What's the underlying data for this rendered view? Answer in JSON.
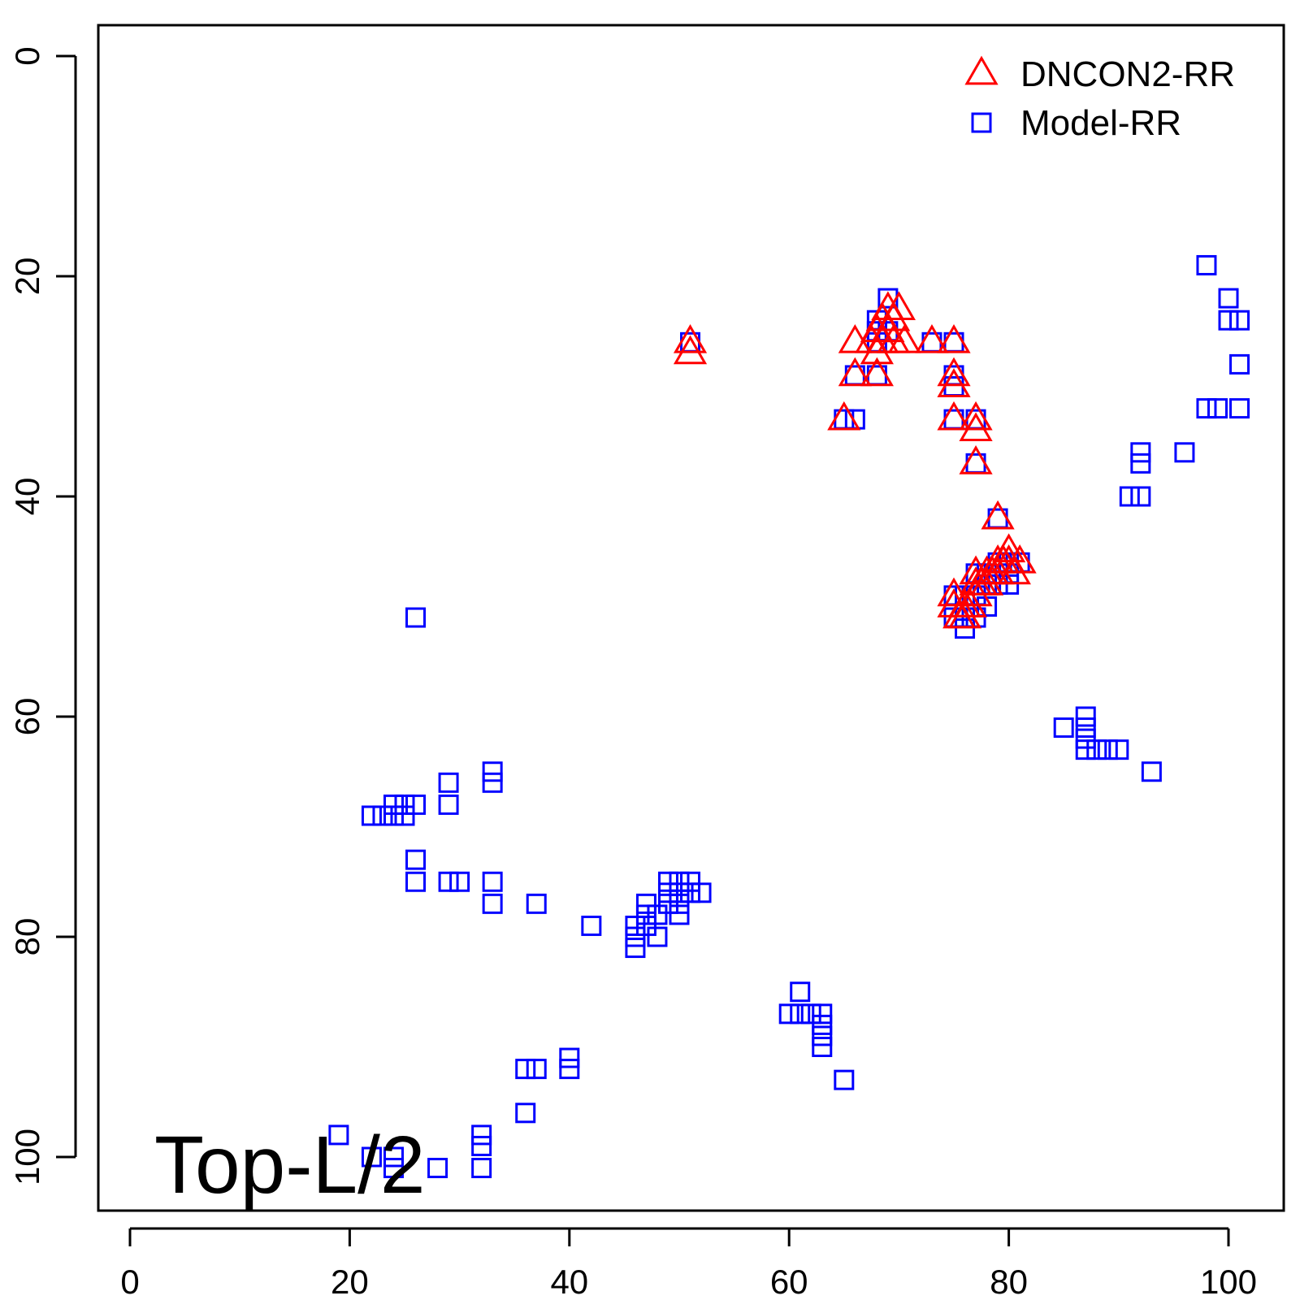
{
  "chart_data": {
    "type": "scatter",
    "title": "",
    "xlabel": "",
    "ylabel": "",
    "xlim": [
      -1.5,
      103
    ],
    "ylim": [
      105,
      -3
    ],
    "y_reversed": true,
    "x_ticks": [
      0,
      20,
      40,
      60,
      80,
      100
    ],
    "y_ticks": [
      0,
      20,
      40,
      60,
      80,
      100
    ],
    "grid": false,
    "legend_position": "top-right",
    "annotation": "Top-L/2",
    "series": [
      {
        "name": "DNCON2-RR",
        "marker": "triangle",
        "color": "#ff0000",
        "points": [
          [
            51,
            26
          ],
          [
            51,
            27
          ],
          [
            65,
            33
          ],
          [
            66,
            26
          ],
          [
            66,
            29
          ],
          [
            67.5,
            26
          ],
          [
            68,
            25
          ],
          [
            68,
            27
          ],
          [
            68,
            29
          ],
          [
            68.5,
            24
          ],
          [
            68.5,
            26
          ],
          [
            69,
            23
          ],
          [
            69,
            25
          ],
          [
            69.5,
            24
          ],
          [
            69.5,
            26
          ],
          [
            70,
            23
          ],
          [
            70.5,
            26
          ],
          [
            73,
            26
          ],
          [
            75,
            26
          ],
          [
            75,
            29
          ],
          [
            75,
            30
          ],
          [
            75,
            33
          ],
          [
            77,
            33
          ],
          [
            77,
            34
          ],
          [
            77,
            37
          ],
          [
            79,
            42
          ],
          [
            75,
            49
          ],
          [
            75,
            50
          ],
          [
            75.5,
            51
          ],
          [
            76,
            50
          ],
          [
            76,
            51
          ],
          [
            76.5,
            50
          ],
          [
            77,
            47
          ],
          [
            77,
            48
          ],
          [
            77,
            49
          ],
          [
            77.5,
            48
          ],
          [
            78,
            47
          ],
          [
            78,
            48
          ],
          [
            78.5,
            47
          ],
          [
            79,
            46
          ],
          [
            79,
            47
          ],
          [
            79.5,
            46
          ],
          [
            80,
            45
          ],
          [
            80,
            46
          ],
          [
            80.5,
            47
          ],
          [
            81,
            46
          ]
        ]
      },
      {
        "name": "Model-RR",
        "marker": "square",
        "color": "#0000ff",
        "points": [
          [
            98,
            19
          ],
          [
            100,
            22
          ],
          [
            100,
            24
          ],
          [
            101,
            24
          ],
          [
            101,
            28
          ],
          [
            98,
            32
          ],
          [
            99,
            32
          ],
          [
            101,
            32
          ],
          [
            92,
            36
          ],
          [
            92,
            37
          ],
          [
            96,
            36
          ],
          [
            91,
            40
          ],
          [
            92,
            40
          ],
          [
            85,
            61
          ],
          [
            87,
            60
          ],
          [
            87,
            61
          ],
          [
            87,
            62
          ],
          [
            87,
            63
          ],
          [
            88,
            63
          ],
          [
            89,
            63
          ],
          [
            90,
            63
          ],
          [
            93,
            65
          ],
          [
            69,
            22
          ],
          [
            68,
            24
          ],
          [
            68,
            25
          ],
          [
            69,
            25
          ],
          [
            68,
            26
          ],
          [
            51,
            26
          ],
          [
            66,
            29
          ],
          [
            68,
            29
          ],
          [
            65,
            33
          ],
          [
            66,
            33
          ],
          [
            73,
            26
          ],
          [
            75,
            26
          ],
          [
            75,
            29
          ],
          [
            75,
            30
          ],
          [
            75,
            33
          ],
          [
            77,
            33
          ],
          [
            77,
            37
          ],
          [
            79,
            42
          ],
          [
            79,
            46
          ],
          [
            80,
            46
          ],
          [
            81,
            46
          ],
          [
            77,
            47
          ],
          [
            80,
            47
          ],
          [
            78,
            47
          ],
          [
            75,
            49
          ],
          [
            76,
            49
          ],
          [
            77,
            49
          ],
          [
            78,
            48
          ],
          [
            79,
            48
          ],
          [
            80,
            48
          ],
          [
            75,
            51
          ],
          [
            76,
            51
          ],
          [
            77,
            51
          ],
          [
            78,
            50
          ],
          [
            76,
            52
          ],
          [
            26,
            51
          ],
          [
            22,
            69
          ],
          [
            23,
            69
          ],
          [
            24,
            69
          ],
          [
            25,
            69
          ],
          [
            24,
            68
          ],
          [
            25,
            68
          ],
          [
            26,
            68
          ],
          [
            29,
            66
          ],
          [
            29,
            68
          ],
          [
            33,
            65
          ],
          [
            33,
            66
          ],
          [
            26,
            73
          ],
          [
            26,
            75
          ],
          [
            29,
            75
          ],
          [
            30,
            75
          ],
          [
            33,
            75
          ],
          [
            33,
            77
          ],
          [
            37,
            77
          ],
          [
            42,
            79
          ],
          [
            46,
            79
          ],
          [
            46,
            80
          ],
          [
            46,
            81
          ],
          [
            47,
            77
          ],
          [
            47,
            78
          ],
          [
            47,
            79
          ],
          [
            48,
            80
          ],
          [
            48,
            78
          ],
          [
            49,
            75
          ],
          [
            49,
            76
          ],
          [
            49,
            77
          ],
          [
            50,
            75
          ],
          [
            50,
            76
          ],
          [
            50,
            77
          ],
          [
            50,
            78
          ],
          [
            51,
            75
          ],
          [
            51,
            76
          ],
          [
            52,
            76
          ],
          [
            61,
            85
          ],
          [
            60,
            87
          ],
          [
            61,
            87
          ],
          [
            62,
            87
          ],
          [
            63,
            87
          ],
          [
            63,
            88
          ],
          [
            63,
            89
          ],
          [
            63,
            90
          ],
          [
            65,
            93
          ],
          [
            40,
            91
          ],
          [
            40,
            92
          ],
          [
            36,
            92
          ],
          [
            37,
            92
          ],
          [
            36,
            96
          ],
          [
            19,
            98
          ],
          [
            22,
            100
          ],
          [
            24,
            100
          ],
          [
            24,
            101
          ],
          [
            28,
            101
          ],
          [
            32,
            98
          ],
          [
            32,
            99
          ],
          [
            32,
            101
          ]
        ]
      }
    ]
  }
}
